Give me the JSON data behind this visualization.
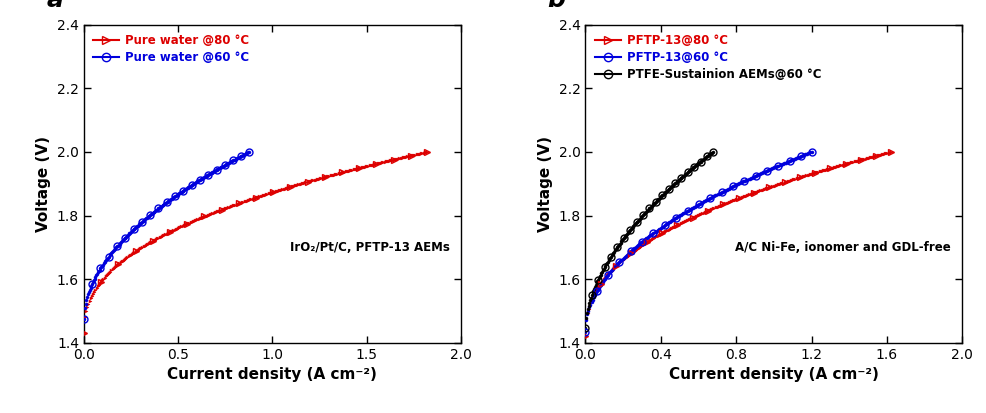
{
  "panel_a": {
    "title": "a",
    "xlabel": "Current density (A cm⁻²)",
    "ylabel": "Voltage (V)",
    "annotation": "IrO₂/Pt/C, PFTP-13 AEMs",
    "xlim": [
      0,
      2.0
    ],
    "ylim": [
      1.4,
      2.4
    ],
    "xticks": [
      0.0,
      0.5,
      1.0,
      1.5,
      2.0
    ],
    "yticks": [
      1.4,
      1.6,
      1.8,
      2.0,
      2.2,
      2.4
    ],
    "series": [
      {
        "label": "Pure water @80 °C",
        "color": "#dd0000",
        "marker": ">",
        "x_start": 0.0,
        "x_end": 1.82,
        "y_start": 1.43,
        "y_end": 2.0,
        "curvature": 0.42,
        "n_dense": 300,
        "marker_step": 15
      },
      {
        "label": "Pure water @60 °C",
        "color": "#0000dd",
        "marker": "o",
        "x_start": 0.0,
        "x_end": 0.875,
        "y_start": 1.475,
        "y_end": 2.0,
        "curvature": 0.52,
        "n_dense": 200,
        "marker_step": 10
      }
    ]
  },
  "panel_b": {
    "title": "b",
    "xlabel": "Current density (A cm⁻²)",
    "ylabel": "Voltage (V)",
    "annotation": "A/C Ni-Fe, ionomer and GDL-free",
    "xlim": [
      0,
      2.0
    ],
    "ylim": [
      1.4,
      2.4
    ],
    "xticks": [
      0.0,
      0.4,
      0.8,
      1.2,
      1.6,
      2.0
    ],
    "yticks": [
      1.4,
      1.6,
      1.8,
      2.0,
      2.2,
      2.4
    ],
    "series": [
      {
        "label": "PFTP-13@80 °C",
        "color": "#dd0000",
        "marker": ">",
        "x_start": 0.0,
        "x_end": 1.62,
        "y_start": 1.42,
        "y_end": 2.0,
        "curvature": 0.42,
        "n_dense": 280,
        "marker_step": 14
      },
      {
        "label": "PFTP-13@60 °C",
        "color": "#0000dd",
        "marker": "o",
        "x_start": 0.0,
        "x_end": 1.2,
        "y_start": 1.435,
        "y_end": 2.0,
        "curvature": 0.5,
        "n_dense": 220,
        "marker_step": 11
      },
      {
        "label": "PTFE-Sustainion AEMs@60 °C",
        "color": "#000000",
        "marker": "o",
        "x_start": 0.0,
        "x_end": 0.675,
        "y_start": 1.445,
        "y_end": 2.0,
        "curvature": 0.56,
        "n_dense": 160,
        "marker_step": 8
      }
    ]
  }
}
